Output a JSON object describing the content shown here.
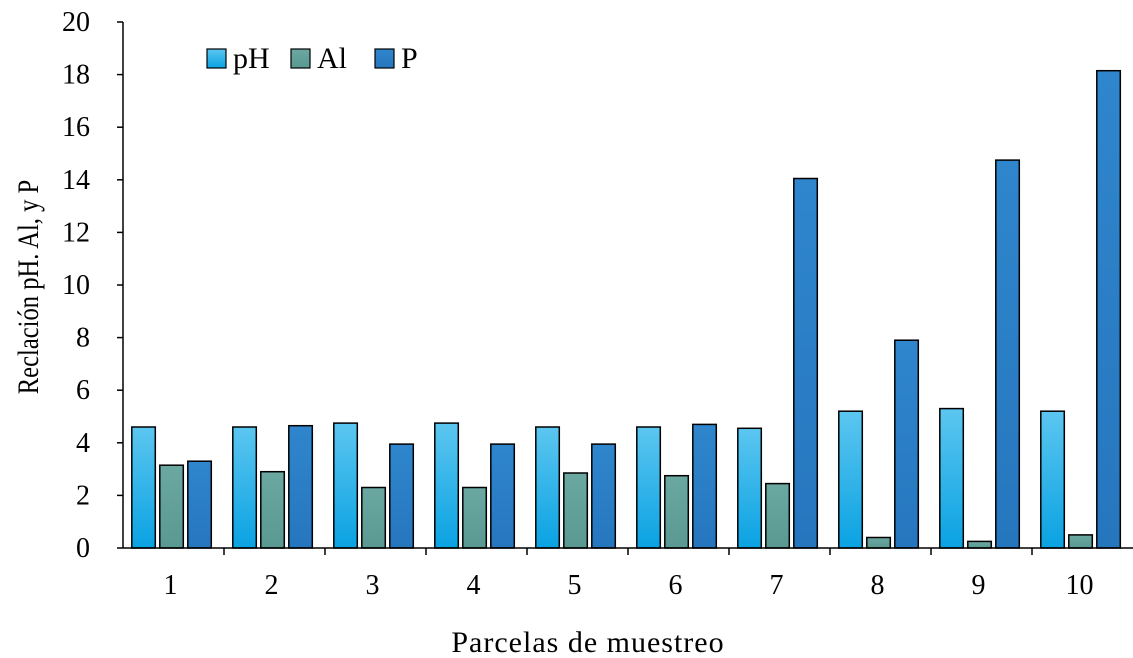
{
  "chart_data": {
    "type": "bar",
    "xlabel": "Parcelas de muestreo",
    "ylabel": "Reclación pH. Al, y P",
    "categories": [
      "1",
      "2",
      "3",
      "4",
      "5",
      "6",
      "7",
      "8",
      "9",
      "10"
    ],
    "ylim": [
      0,
      20
    ],
    "yticks": [
      0,
      2,
      4,
      6,
      8,
      10,
      12,
      14,
      16,
      18,
      20
    ],
    "grid": false,
    "legend_position": "top-left",
    "series": [
      {
        "name": "pH",
        "color": "#2ab0e8",
        "values": [
          4.6,
          4.6,
          4.75,
          4.75,
          4.6,
          4.6,
          4.55,
          5.2,
          5.3,
          5.2
        ]
      },
      {
        "name": "Al",
        "color": "#5f9f98",
        "values": [
          3.15,
          2.9,
          2.3,
          2.3,
          2.85,
          2.75,
          2.45,
          0.4,
          0.25,
          0.5
        ]
      },
      {
        "name": "P",
        "color": "#2b7fc6",
        "values": [
          3.3,
          4.65,
          3.95,
          3.95,
          3.95,
          4.7,
          14.05,
          7.9,
          14.75,
          18.15
        ]
      }
    ]
  }
}
